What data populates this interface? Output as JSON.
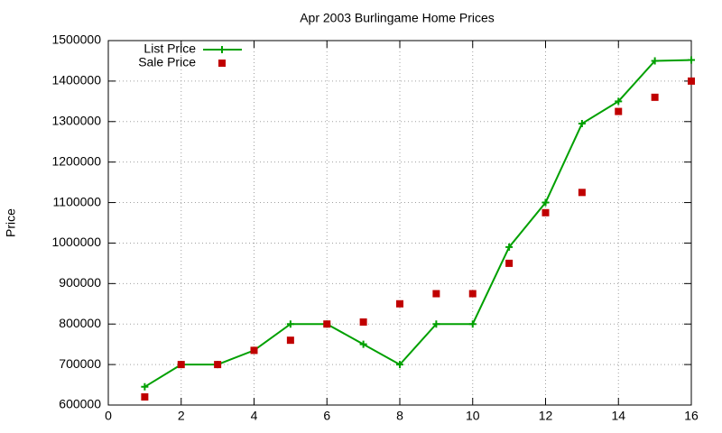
{
  "chart_data": {
    "type": "line",
    "title": "Apr 2003 Burlingame Home Prices",
    "y_label": "Price",
    "x": [
      1,
      2,
      3,
      4,
      5,
      6,
      7,
      8,
      9,
      10,
      11,
      12,
      13,
      14,
      15,
      16
    ],
    "series": [
      {
        "name": "List Price",
        "color": "#00a000",
        "style": "linespoints",
        "values": [
          645000,
          700000,
          700000,
          735000,
          800000,
          800000,
          750000,
          700000,
          800000,
          800000,
          990000,
          1100000,
          1295000,
          1350000,
          1450000,
          1452000
        ]
      },
      {
        "name": "Sale Price",
        "color": "#c00000",
        "style": "points",
        "values": [
          620000,
          700000,
          700000,
          735000,
          760000,
          800000,
          805000,
          850000,
          875000,
          875000,
          950000,
          1075000,
          1125000,
          1325000,
          1360000,
          1400000
        ]
      }
    ],
    "xlim": [
      0,
      16
    ],
    "xticks": [
      0,
      2,
      4,
      6,
      8,
      10,
      12,
      14,
      16
    ],
    "ylim": [
      600000,
      1500000
    ],
    "yticks": [
      600000,
      700000,
      800000,
      900000,
      1000000,
      1100000,
      1200000,
      1300000,
      1400000,
      1500000
    ],
    "grid": true,
    "legend": "top-left"
  }
}
